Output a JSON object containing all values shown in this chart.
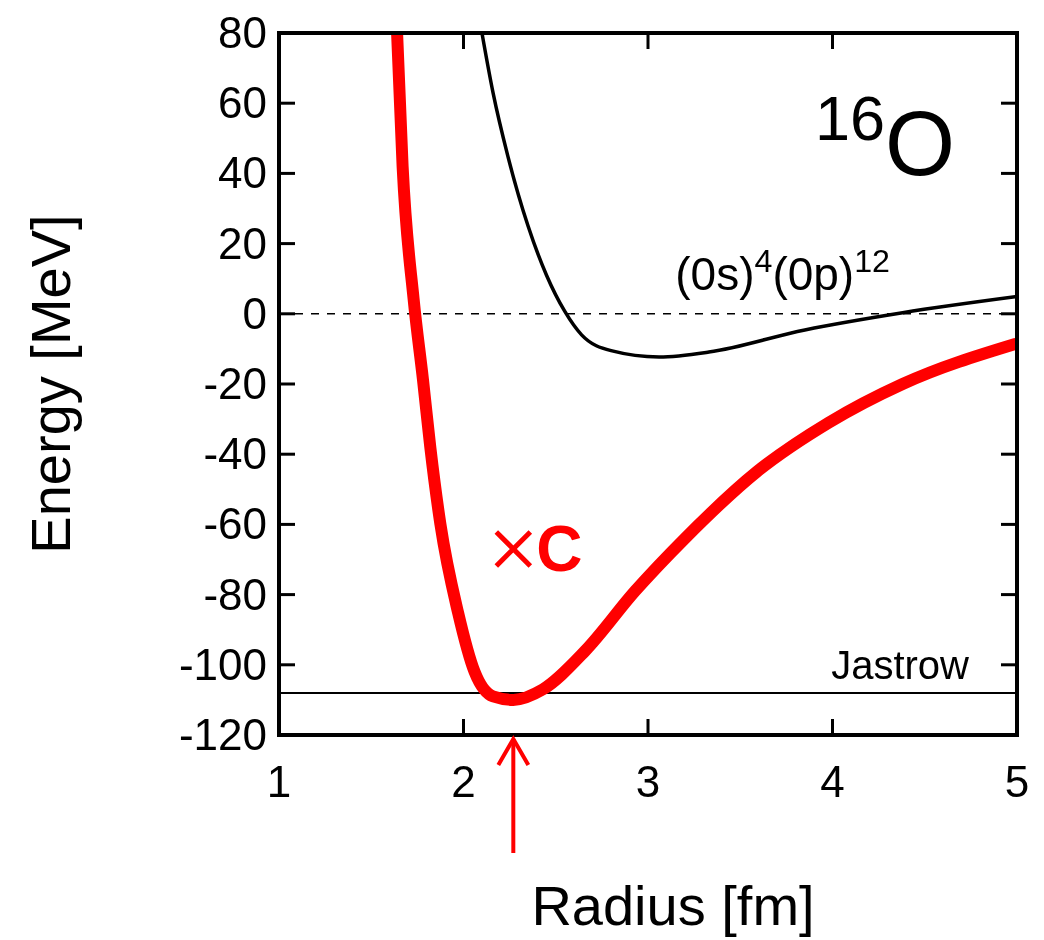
{
  "chart_data": {
    "type": "line",
    "xlabel": "Radius [fm]",
    "ylabel": "Energy [MeV]",
    "xlim": [
      1,
      5
    ],
    "ylim": [
      -120,
      80
    ],
    "xticks": [
      1,
      2,
      3,
      4,
      5
    ],
    "yticks": [
      -120,
      -100,
      -80,
      -60,
      -40,
      -20,
      0,
      20,
      40,
      60,
      80
    ],
    "grid": false,
    "marker": "none",
    "line_style": "solid",
    "series": [
      {
        "color": "#ff0000",
        "x": [
          1.64,
          1.67,
          1.73,
          1.78,
          1.82,
          1.875,
          1.97,
          2.06,
          2.16,
          2.27,
          2.43,
          2.66,
          2.93,
          3.2,
          3.59,
          3.98,
          4.38,
          4.99
        ],
        "values": [
          80,
          42,
          4,
          -18.6,
          -38,
          -60,
          -85,
          -102,
          -109,
          -110,
          -107,
          -96,
          -79,
          -64,
          -45,
          -31,
          -20,
          -8.6
        ]
      },
      {
        "color": "#000000",
        "x": [
          2.1,
          2.16,
          2.24,
          2.35,
          2.45,
          2.55,
          2.64,
          2.8,
          3.06,
          3.33,
          3.85,
          4.38,
          5
        ],
        "values": [
          80,
          63,
          45,
          25,
          11,
          0.6,
          -6,
          -10.5,
          -12.3,
          -10.9,
          -4.6,
          0.3,
          4.9
        ]
      },
      {
        "type": "scatter",
        "name": "C",
        "color": "#ff0000",
        "marker": "cross",
        "x": [
          2.27
        ],
        "values": [
          -67
        ]
      }
    ],
    "ref_lines": [
      {
        "axis": "y",
        "value": 0,
        "color": "#000000",
        "line_style": "dashed"
      },
      {
        "axis": "y",
        "value": -108,
        "label": "Jastrow",
        "color": "#000000",
        "line_style": "solid"
      }
    ],
    "annotations": [
      "$^{16}$O",
      "(0s)$^{4}$(0p)$^{12}$"
    ]
  }
}
